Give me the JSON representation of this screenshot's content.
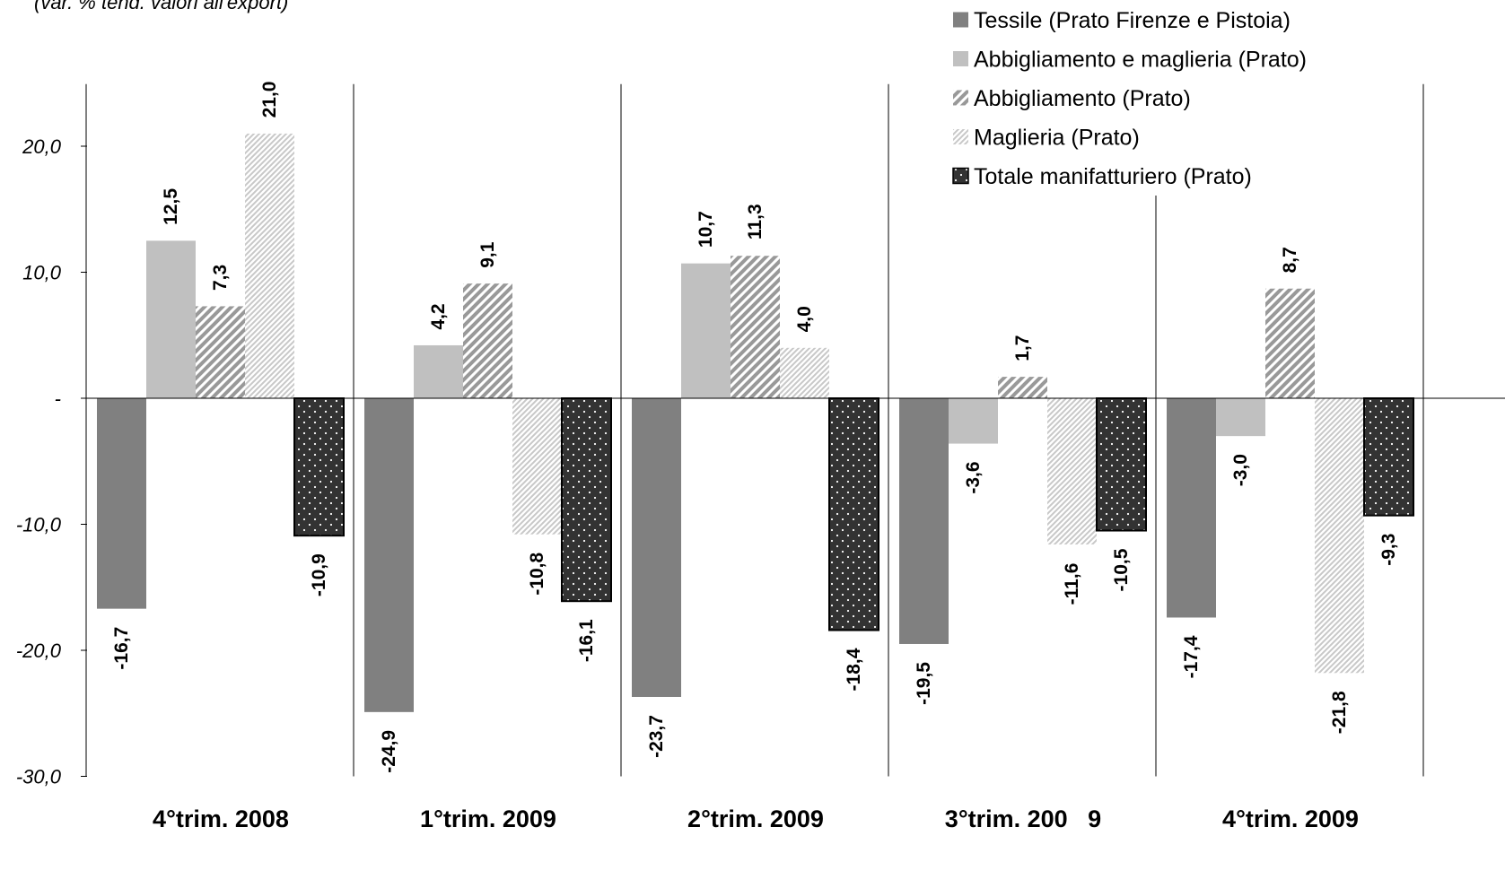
{
  "colors": {
    "tessile": "#808080",
    "abbigliamento_maglieria": "#c0c0c0",
    "hatch_dark": "#999999",
    "hatch_light": "#cfcfcf",
    "totale": "#333333"
  },
  "chart_data": {
    "type": "bar",
    "subtitle": "(var. % tend. valori all'export)",
    "categories": [
      "4°trim. 2008",
      "1°trim. 2009",
      "2°trim. 2009",
      "3°trim. 200   9",
      "4°trim. 2009"
    ],
    "ylim": [
      -30,
      25
    ],
    "yticks": [
      {
        "value": 20,
        "label": "20,0"
      },
      {
        "value": 10,
        "label": "10,0"
      },
      {
        "value": 0,
        "label": "-"
      },
      {
        "value": -10,
        "label": "-10,0"
      },
      {
        "value": -20,
        "label": "-20,0"
      },
      {
        "value": -30,
        "label": "-30,0"
      }
    ],
    "legend_position": "top-right",
    "series": [
      {
        "name": "Tessile (Prato Firenze e Pistoia)",
        "pattern": "solid-dark",
        "values": [
          -16.7,
          -24.9,
          -23.7,
          -19.5,
          -17.4
        ],
        "labels": [
          "-16,7",
          "-24,9",
          "-23,7",
          "-19,5",
          "-17,4"
        ]
      },
      {
        "name": "Abbigliamento e maglieria (Prato)",
        "pattern": "solid-light",
        "values": [
          12.5,
          4.2,
          10.7,
          -3.6,
          -3.0
        ],
        "labels": [
          "12,5",
          "4,2",
          "10,7",
          "-3,6",
          "-3,0"
        ]
      },
      {
        "name": "Abbigliamento (Prato)",
        "pattern": "hatch-dark",
        "values": [
          7.3,
          9.1,
          11.3,
          1.7,
          8.7
        ],
        "labels": [
          "7,3",
          "9,1",
          "11,3",
          "1,7",
          "8,7"
        ]
      },
      {
        "name": "Maglieria (Prato)",
        "pattern": "hatch-light",
        "values": [
          21.0,
          -10.8,
          4.0,
          -11.6,
          -21.8
        ],
        "labels": [
          "21,0",
          "-10,8",
          "4,0",
          "-11,6",
          "-21,8"
        ]
      },
      {
        "name": "Totale manifatturiero (Prato)",
        "pattern": "dots",
        "values": [
          -10.9,
          -16.1,
          -18.4,
          -10.5,
          -9.3
        ],
        "labels": [
          "-10,9",
          "-16,1",
          "-18,4",
          "-10,5",
          "-9,3"
        ]
      }
    ]
  }
}
